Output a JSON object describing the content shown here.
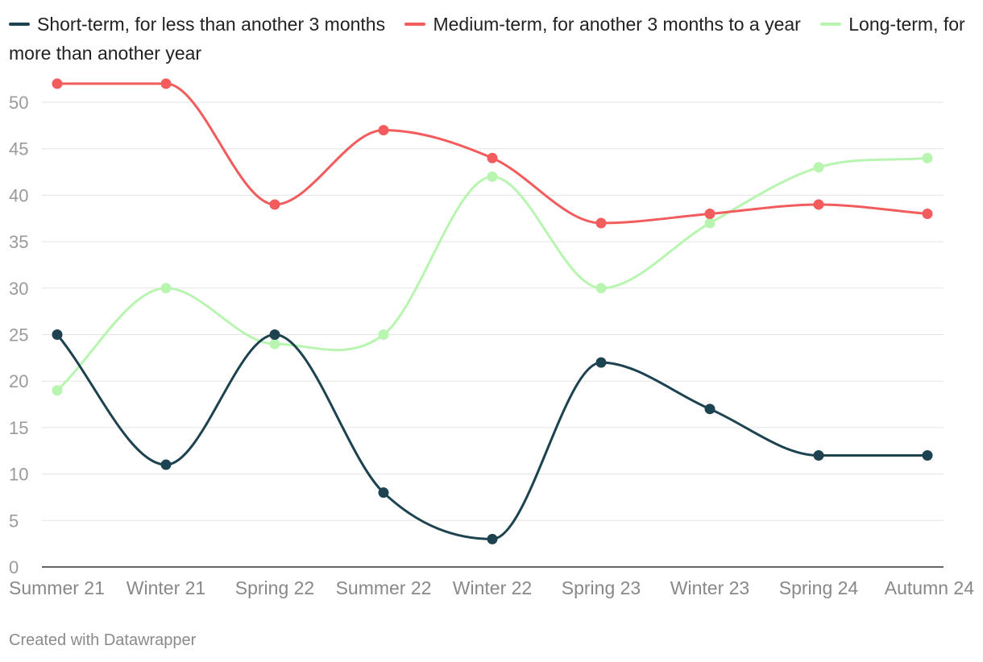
{
  "chart_data": {
    "type": "line",
    "categories": [
      "Summer 21",
      "Winter 21",
      "Spring 22",
      "Summer 22",
      "Winter 22",
      "Spring 23",
      "Winter 23",
      "Spring 24",
      "Autumn 24"
    ],
    "series": [
      {
        "name": "Short-term, for less than another 3 months",
        "color": "#1d4250",
        "values": [
          25,
          11,
          25,
          8,
          3,
          22,
          17,
          12,
          12
        ]
      },
      {
        "name": "Medium-term, for another 3 months to a year",
        "color": "#f25c5c",
        "values": [
          52,
          52,
          39,
          47,
          44,
          37,
          38,
          39,
          38
        ]
      },
      {
        "name": "Long-term, for more than another year",
        "color": "#b8f5b0",
        "values": [
          19,
          30,
          24,
          25,
          42,
          30,
          37,
          43,
          44
        ]
      }
    ],
    "yticks": [
      0,
      5,
      10,
      15,
      20,
      25,
      30,
      35,
      40,
      45,
      50
    ],
    "ylim": [
      0,
      50
    ],
    "grid": true,
    "legend_position": "top"
  },
  "footer": {
    "credit": "Created with Datawrapper"
  }
}
